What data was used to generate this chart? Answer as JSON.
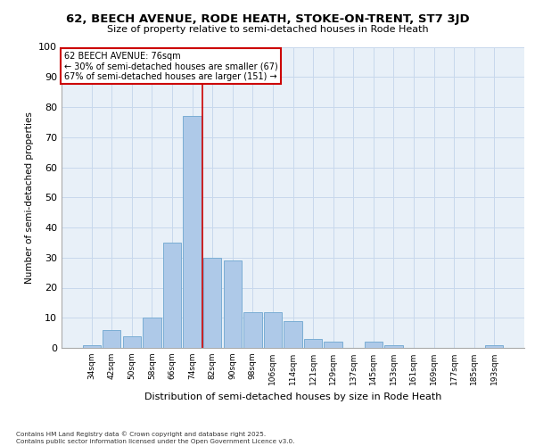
{
  "title1": "62, BEECH AVENUE, RODE HEATH, STOKE-ON-TRENT, ST7 3JD",
  "title2": "Size of property relative to semi-detached houses in Rode Heath",
  "xlabel": "Distribution of semi-detached houses by size in Rode Heath",
  "ylabel": "Number of semi-detached properties",
  "categories": [
    "34sqm",
    "42sqm",
    "50sqm",
    "58sqm",
    "66sqm",
    "74sqm",
    "82sqm",
    "90sqm",
    "98sqm",
    "106sqm",
    "114sqm",
    "121sqm",
    "129sqm",
    "137sqm",
    "145sqm",
    "153sqm",
    "161sqm",
    "169sqm",
    "177sqm",
    "185sqm",
    "193sqm"
  ],
  "values": [
    1,
    6,
    4,
    10,
    35,
    77,
    30,
    29,
    12,
    12,
    9,
    3,
    2,
    0,
    2,
    1,
    0,
    0,
    0,
    0,
    1
  ],
  "bar_color": "#aec9e8",
  "bar_edge_color": "#7aadd4",
  "grid_color": "#c8d8ec",
  "background_color": "#e8f0f8",
  "marker_bin_index": 5,
  "annotation_title": "62 BEECH AVENUE: 76sqm",
  "annotation_line1": "← 30% of semi-detached houses are smaller (67)",
  "annotation_line2": "67% of semi-detached houses are larger (151) →",
  "annotation_box_color": "#ffffff",
  "annotation_box_edge": "#cc0000",
  "marker_line_color": "#cc0000",
  "footer1": "Contains HM Land Registry data © Crown copyright and database right 2025.",
  "footer2": "Contains public sector information licensed under the Open Government Licence v3.0.",
  "ylim": [
    0,
    100
  ],
  "yticks": [
    0,
    10,
    20,
    30,
    40,
    50,
    60,
    70,
    80,
    90,
    100
  ]
}
